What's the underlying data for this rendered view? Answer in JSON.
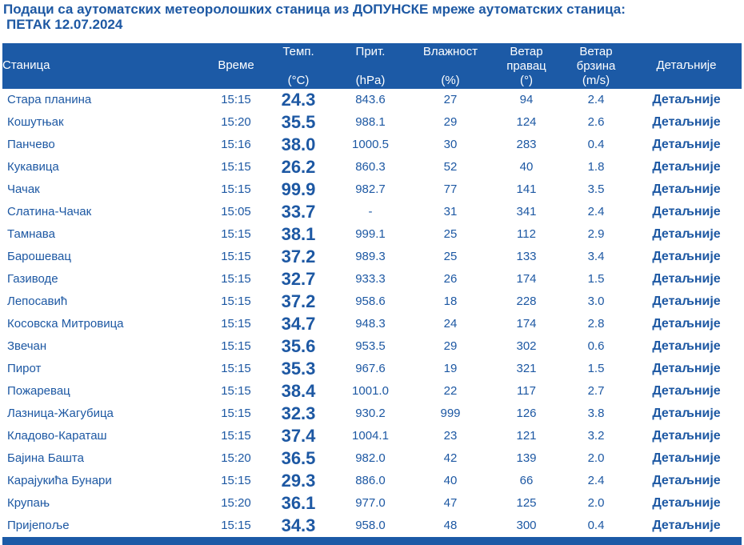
{
  "title": {
    "line1": "Подаци са аутоматских метеоролошких станица из ДОПУНСКЕ мреже аутоматских станица:",
    "line2": "ПЕТАК 12.07.2024"
  },
  "headers": {
    "station": "Станица",
    "time": "Време",
    "temp": "Темп.",
    "temp_unit": "(°C)",
    "pres": "Прит.",
    "pres_unit": "(hPa)",
    "hum": "Влажност",
    "hum_unit": "(%)",
    "wdir1": "Ветар",
    "wdir2": "правац",
    "wdir_unit": "(°)",
    "wspd1": "Ветар",
    "wspd2": "брзина",
    "wspd_unit": "(m/s)",
    "details": "Детаљније"
  },
  "rows": [
    [
      "Стара планина",
      "15:15",
      "24.3",
      "843.6",
      "27",
      "94",
      "2.4",
      "Детаљније"
    ],
    [
      "Кошутњак",
      "15:20",
      "35.5",
      "988.1",
      "29",
      "124",
      "2.6",
      "Детаљније"
    ],
    [
      "Панчево",
      "15:16",
      "38.0",
      "1000.5",
      "30",
      "283",
      "0.4",
      "Детаљније"
    ],
    [
      "Кукавица",
      "15:15",
      "26.2",
      "860.3",
      "52",
      "40",
      "1.8",
      "Детаљније"
    ],
    [
      "Чачак",
      "15:15",
      "99.9",
      "982.7",
      "77",
      "141",
      "3.5",
      "Детаљније"
    ],
    [
      "Слатина-Чачак",
      "15:05",
      "33.7",
      "-",
      "31",
      "341",
      "2.4",
      "Детаљније"
    ],
    [
      "Тамнава",
      "15:15",
      "38.1",
      "999.1",
      "25",
      "112",
      "2.9",
      "Детаљније"
    ],
    [
      "Барошевац",
      "15:15",
      "37.2",
      "989.3",
      "25",
      "133",
      "3.4",
      "Детаљније"
    ],
    [
      "Газиводе",
      "15:15",
      "32.7",
      "933.3",
      "26",
      "174",
      "1.5",
      "Детаљније"
    ],
    [
      "Лепосавић",
      "15:15",
      "37.2",
      "958.6",
      "18",
      "228",
      "3.0",
      "Детаљније"
    ],
    [
      "Косовска Митровица",
      "15:15",
      "34.7",
      "948.3",
      "24",
      "174",
      "2.8",
      "Детаљније"
    ],
    [
      "Звечан",
      "15:15",
      "35.6",
      "953.5",
      "29",
      "302",
      "0.6",
      "Детаљније"
    ],
    [
      "Пирот",
      "15:15",
      "35.3",
      "967.6",
      "19",
      "321",
      "1.5",
      "Детаљније"
    ],
    [
      "Пожаревац",
      "15:15",
      "38.4",
      "1001.0",
      "22",
      "117",
      "2.7",
      "Детаљније"
    ],
    [
      "Лазница-Жагубица",
      "15:15",
      "32.3",
      "930.2",
      "999",
      "126",
      "3.8",
      "Детаљније"
    ],
    [
      "Кладово-Караташ",
      "15:15",
      "37.4",
      "1004.1",
      "23",
      "121",
      "3.2",
      "Детаљније"
    ],
    [
      "Бајина Башта",
      "15:20",
      "36.5",
      "982.0",
      "42",
      "139",
      "2.0",
      "Детаљније"
    ],
    [
      "Карајукића Бунари",
      "15:15",
      "29.3",
      "886.0",
      "40",
      "66",
      "2.4",
      "Детаљније"
    ],
    [
      "Крупањ",
      "15:20",
      "36.1",
      "977.0",
      "47",
      "125",
      "2.0",
      "Детаљније"
    ],
    [
      "Пријепоље",
      "15:15",
      "34.3",
      "958.0",
      "48",
      "300",
      "0.4",
      "Детаљније"
    ]
  ]
}
